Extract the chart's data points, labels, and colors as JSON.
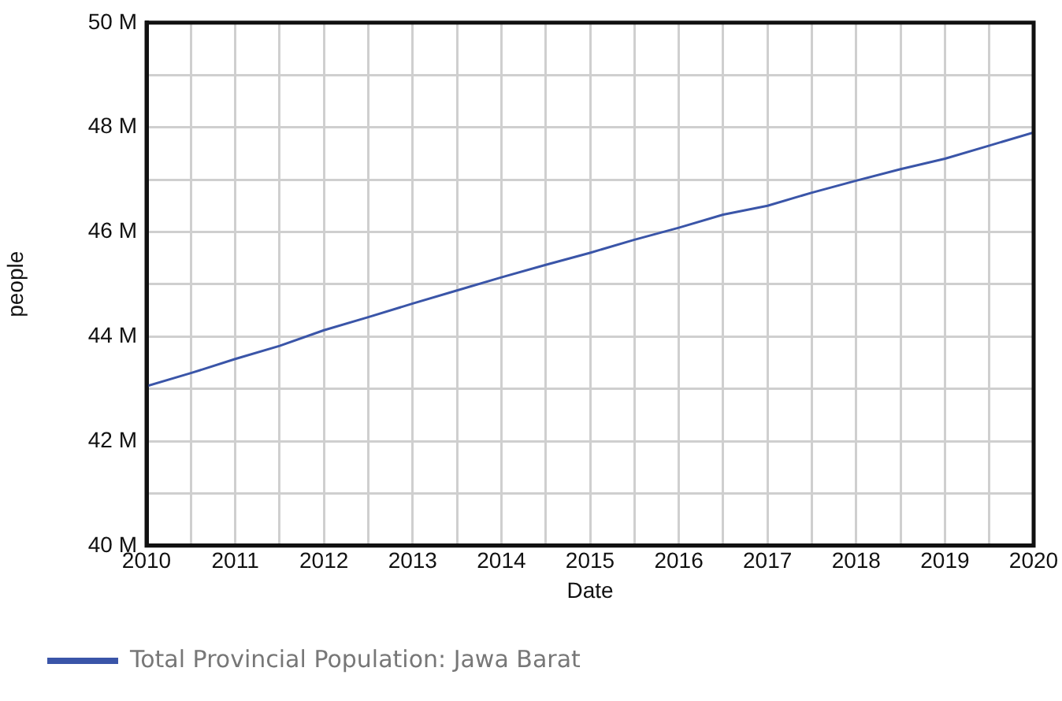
{
  "chart_data": {
    "type": "line",
    "xlabel": "Date",
    "ylabel": "people",
    "x": [
      2010,
      2010.5,
      2011,
      2011.5,
      2012,
      2012.5,
      2013,
      2013.5,
      2014,
      2014.5,
      2015,
      2015.5,
      2016,
      2016.5,
      2017,
      2017.5,
      2018,
      2018.5,
      2019,
      2019.5,
      2020
    ],
    "series": [
      {
        "name": "Total Provincial Population: Jawa Barat",
        "color": "#3a55a8",
        "values": [
          43.05,
          43.3,
          43.57,
          43.82,
          44.12,
          44.37,
          44.63,
          44.88,
          45.13,
          45.37,
          45.6,
          45.85,
          46.08,
          46.33,
          46.5,
          46.75,
          46.98,
          47.2,
          47.4,
          47.65,
          47.9
        ]
      }
    ],
    "xlim": [
      2010,
      2020
    ],
    "xticks": [
      2010,
      {
        "value": 2010.5,
        "label": null
      },
      2011,
      {
        "value": 2011.5,
        "label": null
      },
      2012,
      {
        "value": 2012.5,
        "label": null
      },
      2013,
      {
        "value": 2013.5,
        "label": null
      },
      2014,
      {
        "value": 2014.5,
        "label": null
      },
      2015,
      {
        "value": 2015.5,
        "label": null
      },
      2016,
      {
        "value": 2016.5,
        "label": null
      },
      2017,
      {
        "value": 2017.5,
        "label": null
      },
      2018,
      {
        "value": 2018.5,
        "label": null
      },
      2019,
      {
        "value": 2019.5,
        "label": null
      },
      2020
    ],
    "ylim": [
      40,
      50
    ],
    "yticks": [
      {
        "value": 40,
        "label": "40 M"
      },
      {
        "value": 41,
        "label": null
      },
      {
        "value": 42,
        "label": "42 M"
      },
      {
        "value": 43,
        "label": null
      },
      {
        "value": 44,
        "label": "44 M"
      },
      {
        "value": 45,
        "label": null
      },
      {
        "value": 46,
        "label": "46 M"
      },
      {
        "value": 47,
        "label": null
      },
      {
        "value": 48,
        "label": "48 M"
      },
      {
        "value": 49,
        "label": null
      },
      {
        "value": 50,
        "label": "50 M"
      }
    ],
    "grid": true,
    "legend": "bottom",
    "marker": "none",
    "line_style": "solid"
  }
}
